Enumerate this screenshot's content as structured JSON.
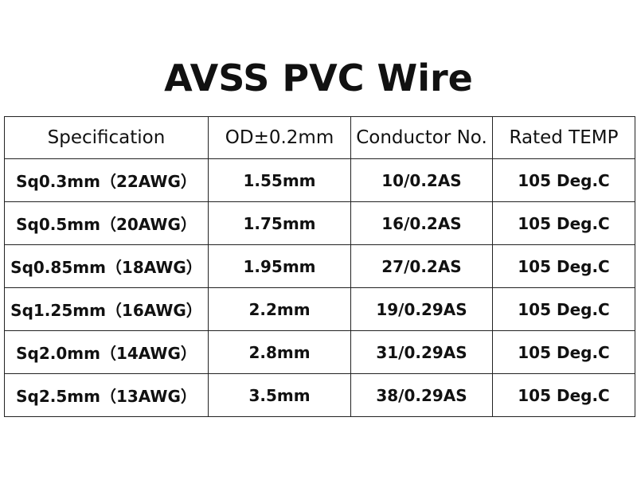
{
  "title": "AVSS PVC Wire",
  "table": {
    "header": [
      "Specification",
      "OD±0.2mm",
      "Conductor No.",
      "Rated TEMP"
    ],
    "rows": [
      [
        "Sq0.3mm（22AWG）",
        "1.55mm",
        "10/0.2AS",
        "105 Deg.C"
      ],
      [
        "Sq0.5mm（20AWG）",
        "1.75mm",
        "16/0.2AS",
        "105 Deg.C"
      ],
      [
        "Sq0.85mm（18AWG）",
        "1.95mm",
        "27/0.2AS",
        "105 Deg.C"
      ],
      [
        "Sq1.25mm（16AWG）",
        "2.2mm",
        "19/0.29AS",
        "105 Deg.C"
      ],
      [
        "Sq2.0mm（14AWG）",
        "2.8mm",
        "31/0.29AS",
        "105 Deg.C"
      ],
      [
        "Sq2.5mm（13AWG）",
        "3.5mm",
        "38/0.29AS",
        "105 Deg.C"
      ]
    ]
  }
}
